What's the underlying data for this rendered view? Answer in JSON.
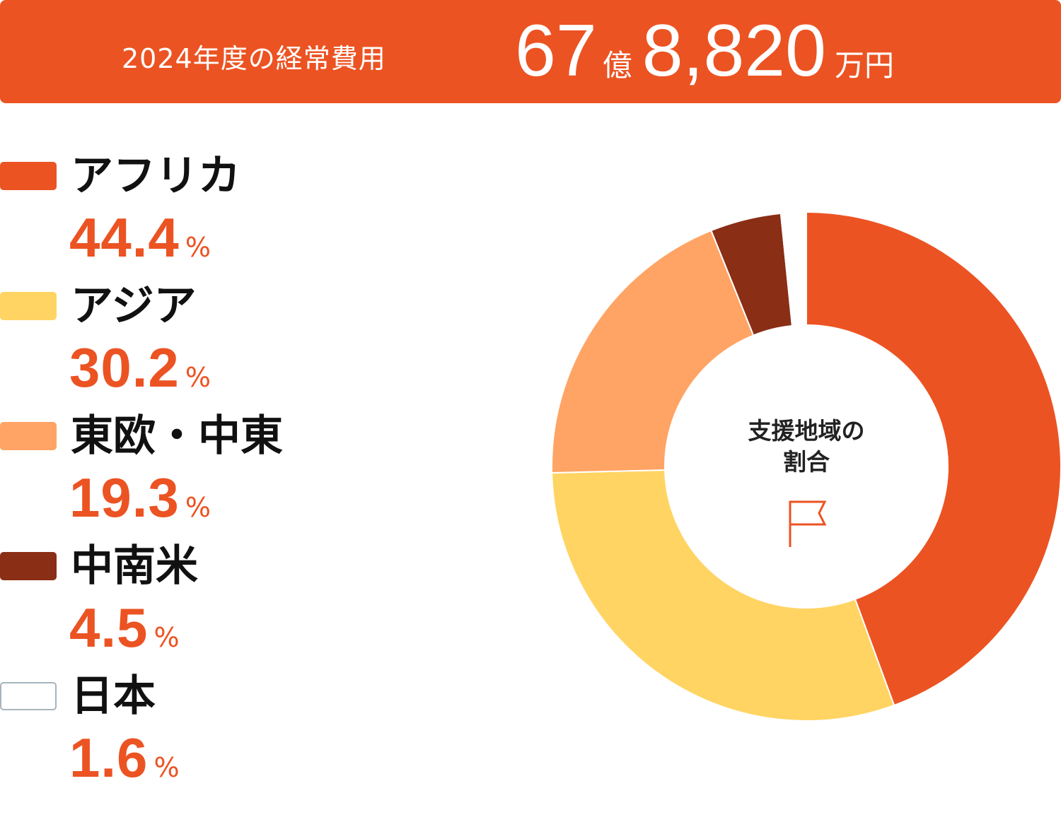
{
  "header": {
    "label": "2024年度の経常費用",
    "amount_oku": "67",
    "oku_unit": "億",
    "amount_man": "8,820",
    "man_unit": "万円"
  },
  "center": {
    "line1": "支援地域の",
    "line2": "割合",
    "icon": "flag-icon"
  },
  "legend": [
    {
      "name": "アフリカ",
      "value": "44.4",
      "unit": "%"
    },
    {
      "name": "アジア",
      "value": "30.2",
      "unit": "%"
    },
    {
      "name": "東欧・中東",
      "value": "19.3",
      "unit": "%"
    },
    {
      "name": "中南米",
      "value": "4.5",
      "unit": "%"
    },
    {
      "name": "日本",
      "value": "1.6",
      "unit": "%"
    }
  ],
  "chart_data": {
    "type": "pie",
    "donut": true,
    "title": "",
    "categories": [
      "アフリカ",
      "アジア",
      "東欧・中東",
      "中南米",
      "日本"
    ],
    "values": [
      44.4,
      30.2,
      19.3,
      4.5,
      1.6
    ],
    "colors": [
      "#EC5322",
      "#FFD462",
      "#FFA464",
      "#8A2E16",
      "#FFFFFF"
    ],
    "value_unit": "%",
    "legend_position": "left",
    "start": "top, clockwise"
  },
  "colors": {
    "accent": "#EC5322",
    "japan_outline": "#A8B4BC"
  }
}
